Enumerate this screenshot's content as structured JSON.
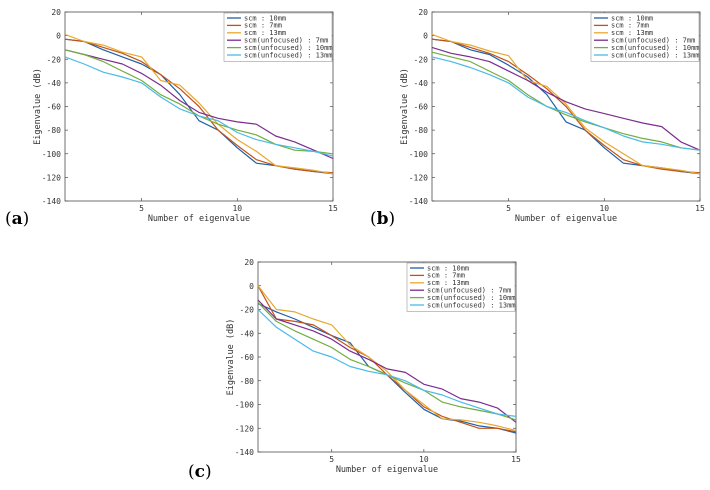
{
  "chart_data": [
    {
      "type": "line",
      "panel_label": "a",
      "xlabel": "Number of eigenvalue",
      "ylabel": "Eigenvalue (dB)",
      "xlim": [
        1,
        15
      ],
      "ylim": [
        -140,
        20
      ],
      "xticks": [
        5,
        10,
        15
      ],
      "yticks": [
        20,
        0,
        -20,
        -40,
        -60,
        -80,
        -100,
        -120,
        -140
      ],
      "legend_position": "top-right",
      "x": [
        1,
        2,
        3,
        4,
        5,
        6,
        7,
        8,
        9,
        10,
        11,
        12,
        13,
        14,
        15
      ],
      "series": [
        {
          "name": "scm : 10mm",
          "color": "#1f5fa8",
          "values": [
            -3,
            -5,
            -12,
            -18,
            -24,
            -33,
            -50,
            -72,
            -80,
            -95,
            -108,
            -110,
            -113,
            -115,
            -117
          ]
        },
        {
          "name": "scm : 7mm",
          "color": "#c0531b",
          "values": [
            -3,
            -5,
            -10,
            -15,
            -22,
            -33,
            -45,
            -60,
            -80,
            -93,
            -105,
            -110,
            -113,
            -115,
            -116
          ]
        },
        {
          "name": "scm : 13mm",
          "color": "#e8a82e",
          "values": [
            1,
            -5,
            -8,
            -14,
            -18,
            -38,
            -42,
            -57,
            -75,
            -88,
            -98,
            -110,
            -112,
            -114,
            -117
          ]
        },
        {
          "name": "scm(unfocused) : 7mm",
          "color": "#7b2d8e",
          "values": [
            -12,
            -16,
            -20,
            -24,
            -32,
            -42,
            -55,
            -65,
            -70,
            -73,
            -75,
            -85,
            -90,
            -97,
            -104
          ]
        },
        {
          "name": "scm(unfocused) : 10mm",
          "color": "#72ad3e",
          "values": [
            -12,
            -16,
            -22,
            -30,
            -38,
            -50,
            -58,
            -68,
            -75,
            -80,
            -84,
            -92,
            -97,
            -98,
            -100
          ]
        },
        {
          "name": "scm(unfocused) : 13mm",
          "color": "#4bb9e8",
          "values": [
            -18,
            -24,
            -31,
            -35,
            -40,
            -52,
            -62,
            -68,
            -72,
            -82,
            -88,
            -92,
            -95,
            -98,
            -102
          ]
        }
      ]
    },
    {
      "type": "line",
      "panel_label": "b",
      "xlabel": "Number of eigenvalue",
      "ylabel": "Eigenvalue (dB)",
      "xlim": [
        1,
        15
      ],
      "ylim": [
        -140,
        20
      ],
      "xticks": [
        5,
        10,
        15
      ],
      "yticks": [
        20,
        0,
        -20,
        -40,
        -60,
        -80,
        -100,
        -120,
        -140
      ],
      "legend_position": "top-right",
      "x": [
        1,
        2,
        3,
        4,
        5,
        6,
        7,
        8,
        9,
        10,
        11,
        12,
        13,
        14,
        15
      ],
      "series": [
        {
          "name": "scm : 10mm",
          "color": "#1f5fa8",
          "values": [
            -3,
            -5,
            -12,
            -16,
            -25,
            -35,
            -50,
            -73,
            -80,
            -95,
            -108,
            -110,
            -112,
            -115,
            -117
          ]
        },
        {
          "name": "scm : 7mm",
          "color": "#c0531b",
          "values": [
            -3,
            -5,
            -10,
            -15,
            -22,
            -33,
            -45,
            -60,
            -80,
            -93,
            -105,
            -110,
            -113,
            -115,
            -116
          ]
        },
        {
          "name": "scm : 13mm",
          "color": "#e8a82e",
          "values": [
            1,
            -5,
            -8,
            -13,
            -17,
            -38,
            -43,
            -58,
            -78,
            -90,
            -100,
            -110,
            -112,
            -114,
            -117
          ]
        },
        {
          "name": "scm(unfocused) : 7mm",
          "color": "#7b2d8e",
          "values": [
            -10,
            -15,
            -18,
            -22,
            -30,
            -38,
            -48,
            -56,
            -62,
            -66,
            -70,
            -74,
            -77,
            -90,
            -97
          ]
        },
        {
          "name": "scm(unfocused) : 10mm",
          "color": "#72ad3e",
          "values": [
            -14,
            -18,
            -22,
            -30,
            -38,
            -50,
            -60,
            -67,
            -73,
            -78,
            -83,
            -87,
            -90,
            -95,
            -97
          ]
        },
        {
          "name": "scm(unfocused) : 13mm",
          "color": "#4bb9e8",
          "values": [
            -18,
            -22,
            -27,
            -33,
            -40,
            -52,
            -60,
            -65,
            -72,
            -78,
            -85,
            -90,
            -92,
            -95,
            -97
          ]
        }
      ]
    },
    {
      "type": "line",
      "panel_label": "c",
      "xlabel": "Number of eigenvalue",
      "ylabel": "Eigenvalue (dB)",
      "xlim": [
        1,
        15
      ],
      "ylim": [
        -140,
        20
      ],
      "xticks": [
        5,
        10,
        15
      ],
      "yticks": [
        20,
        0,
        -20,
        -40,
        -60,
        -80,
        -100,
        -120,
        -140
      ],
      "legend_position": "top-right",
      "x": [
        1,
        2,
        3,
        4,
        5,
        6,
        7,
        8,
        9,
        10,
        11,
        12,
        13,
        14,
        15
      ],
      "series": [
        {
          "name": "scm : 10mm",
          "color": "#1f5fa8",
          "values": [
            -15,
            -22,
            -28,
            -35,
            -42,
            -48,
            -68,
            -75,
            -90,
            -104,
            -112,
            -114,
            -118,
            -120,
            -124
          ]
        },
        {
          "name": "scm : 7mm",
          "color": "#c0531b",
          "values": [
            0,
            -28,
            -30,
            -33,
            -42,
            -52,
            -60,
            -75,
            -88,
            -102,
            -110,
            -115,
            -120,
            -120,
            -123
          ]
        },
        {
          "name": "scm : 13mm",
          "color": "#e8a82e",
          "values": [
            0,
            -20,
            -22,
            -28,
            -33,
            -50,
            -60,
            -72,
            -88,
            -100,
            -112,
            -113,
            -115,
            -118,
            -122
          ]
        },
        {
          "name": "scm(unfocused) : 7mm",
          "color": "#7b2d8e",
          "values": [
            -12,
            -28,
            -33,
            -38,
            -45,
            -55,
            -62,
            -70,
            -73,
            -83,
            -87,
            -95,
            -98,
            -103,
            -115
          ]
        },
        {
          "name": "scm(unfocused) : 10mm",
          "color": "#72ad3e",
          "values": [
            -14,
            -30,
            -38,
            -45,
            -52,
            -62,
            -68,
            -75,
            -82,
            -88,
            -98,
            -102,
            -105,
            -108,
            -113
          ]
        },
        {
          "name": "scm(unfocused) : 13mm",
          "color": "#4bb9e8",
          "values": [
            -20,
            -35,
            -45,
            -55,
            -60,
            -68,
            -72,
            -75,
            -80,
            -88,
            -92,
            -98,
            -103,
            -108,
            -110
          ]
        }
      ]
    }
  ]
}
